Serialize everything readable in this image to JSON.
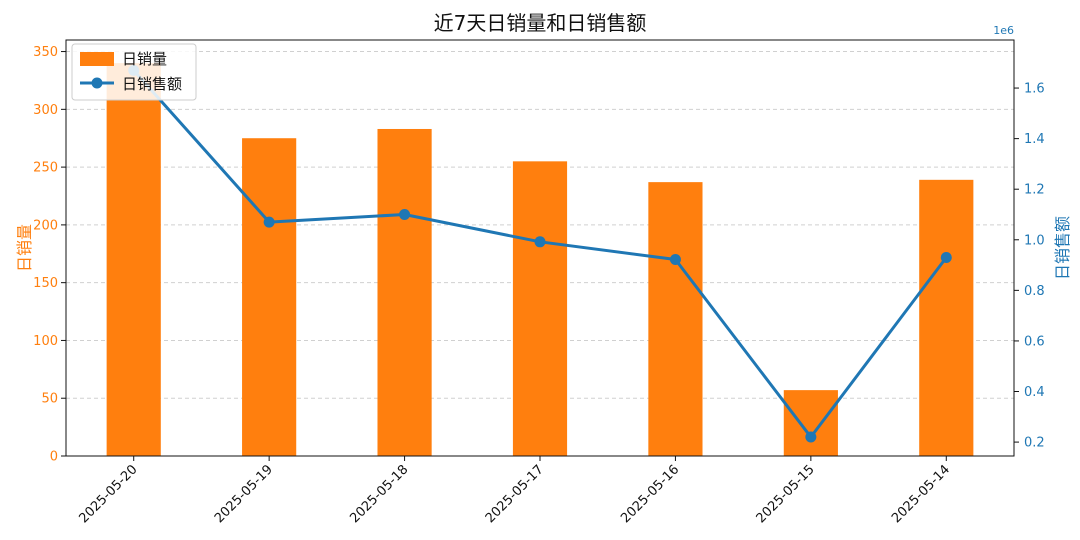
{
  "chart_data": {
    "type": "bar+line",
    "title": "近7天日销量和日销售额",
    "categories": [
      "2025-05-20",
      "2025-05-19",
      "2025-05-18",
      "2025-05-17",
      "2025-05-16",
      "2025-05-15",
      "2025-05-14"
    ],
    "series": [
      {
        "name": "日销量",
        "type": "bar",
        "axis": "left",
        "color": "#ff7f0e",
        "values": [
          340,
          275,
          283,
          255,
          237,
          57,
          239
        ]
      },
      {
        "name": "日销售额",
        "type": "line",
        "axis": "right",
        "color": "#1f77b4",
        "marker": "circle",
        "values": [
          1670000,
          1070000,
          1100000,
          992000,
          922000,
          220000,
          930000
        ]
      }
    ],
    "y_left": {
      "label": "日销量",
      "ylim": [
        0,
        360
      ],
      "ticks": [
        0,
        50,
        100,
        150,
        200,
        250,
        300,
        350
      ],
      "color": "#ff7f0e"
    },
    "y_right": {
      "label": "日销售额",
      "ylim": [
        0.145,
        1.79
      ],
      "ticks": [
        0.2,
        0.4,
        0.6,
        0.8,
        1.0,
        1.2,
        1.4,
        1.6
      ],
      "tick_labels": [
        "0.2",
        "0.4",
        "0.6",
        "0.8",
        "1.0",
        "1.2",
        "1.4",
        "1.6"
      ],
      "offset_text": "1e6",
      "color": "#1f77b4"
    },
    "grid": "horizontal-dashed",
    "legend": "top-left",
    "xtick_rotation": 45
  }
}
